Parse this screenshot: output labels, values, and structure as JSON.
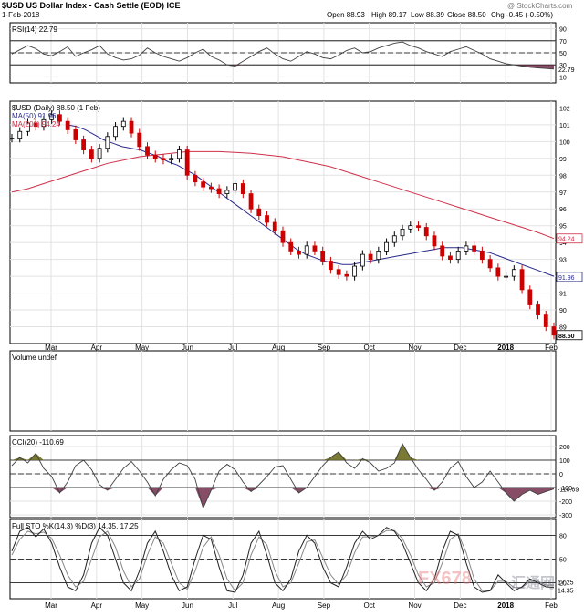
{
  "header": {
    "symbol_line": "$USD US Dollar Index - Cash Settle (EOD) ICE",
    "brand": "@ StockCharts.com",
    "date": "1-Feb-2018",
    "quote": {
      "open": "Open 88.93",
      "high": "High 89.17",
      "low": "Low 88.39",
      "close": "Close 88.50",
      "chg": "Chg -0.45 (-0.50%)"
    }
  },
  "colors": {
    "price_up": "#000000",
    "price_down": "#cc0000",
    "ma50": "#2a2a8a",
    "ma200": "#d0304a",
    "rsi": "#404040",
    "negative_fill": "#7a3a55",
    "positive_fill": "#6b6b1e",
    "frame": "#000000",
    "grid": "#e2e2e2"
  },
  "watermark": {
    "left": "FX678",
    "right": "汇通网"
  },
  "x_axis": {
    "months": [
      "Mar",
      "Apr",
      "May",
      "Jun",
      "Jul",
      "Aug",
      "Sep",
      "Oct",
      "Nov",
      "Dec",
      "2018",
      "Feb"
    ]
  },
  "chart_data": [
    {
      "type": "line",
      "title": "RSI(14) 22.79",
      "y_ticks": [
        90,
        70,
        50,
        30,
        10
      ],
      "reference_lines": [
        70,
        50,
        30
      ],
      "last_value": "22.79",
      "series": [
        {
          "name": "RSI(14)",
          "values": [
            48,
            55,
            62,
            57,
            48,
            45,
            52,
            60,
            44,
            50,
            55,
            62,
            48,
            42,
            38,
            40,
            46,
            58,
            50,
            44,
            40,
            36,
            42,
            50,
            56,
            44,
            38,
            30,
            28,
            36,
            44,
            52,
            58,
            48,
            40,
            36,
            44,
            52,
            48,
            42,
            40,
            46,
            54,
            58,
            50,
            52,
            58,
            62,
            66,
            68,
            62,
            58,
            52,
            48,
            44,
            52,
            56,
            60,
            54,
            48,
            40,
            36,
            32,
            30,
            28,
            26,
            25,
            24,
            23
          ]
        }
      ]
    },
    {
      "type": "line",
      "title": "$USD (Daily) 88.50 (1 Feb)",
      "legend": [
        "MA(50) 91.96",
        "MA(200) 94.24"
      ],
      "y_ticks": [
        102,
        101,
        100,
        99,
        98,
        97,
        96,
        95,
        94,
        93,
        92,
        91,
        90,
        89
      ],
      "ylim": [
        88,
        102.4
      ],
      "last_labels": {
        "ma200": "94.24",
        "ma50": "91.96",
        "price": "88.50"
      },
      "series": [
        {
          "name": "$USD",
          "values": [
            100.2,
            100.6,
            101.1,
            100.9,
            101.3,
            101.6,
            101.2,
            100.7,
            100.1,
            99.5,
            99.0,
            99.6,
            100.3,
            100.9,
            101.2,
            100.5,
            99.7,
            99.2,
            99.0,
            98.9,
            99.0,
            99.5,
            98.0,
            97.6,
            97.3,
            97.2,
            96.9,
            97.1,
            97.5,
            96.9,
            96.0,
            95.6,
            95.2,
            94.7,
            94.0,
            93.5,
            93.3,
            93.8,
            93.5,
            92.9,
            92.4,
            92.1,
            92.0,
            92.6,
            93.3,
            93.0,
            93.5,
            94.0,
            94.4,
            94.8,
            95.0,
            94.9,
            94.4,
            93.8,
            93.2,
            93.0,
            93.5,
            93.8,
            93.5,
            93.0,
            92.5,
            92.0,
            92.0,
            92.4,
            91.2,
            90.3,
            89.7,
            89.0,
            88.5
          ]
        },
        {
          "name": "MA(50)",
          "values": [
            null,
            null,
            null,
            null,
            null,
            null,
            101.0,
            100.9,
            100.7,
            100.4,
            100.1,
            99.9,
            99.7,
            99.6,
            99.5,
            99.3,
            99.1,
            98.8,
            98.6,
            98.3,
            98.0,
            97.6,
            97.2,
            96.8,
            96.4,
            96.0,
            95.6,
            95.2,
            94.8,
            94.4,
            94.0,
            93.6,
            93.3,
            93.1,
            92.9,
            92.8,
            92.7,
            92.7,
            92.8,
            92.9,
            93.0,
            93.1,
            93.2,
            93.3,
            93.4,
            93.5,
            93.6,
            93.7,
            93.7,
            93.7,
            93.6,
            93.5,
            93.4,
            93.2,
            93.0,
            92.8,
            92.6,
            92.4,
            92.2,
            92.0
          ]
        },
        {
          "name": "MA(200)",
          "values": [
            97.0,
            97.2,
            97.5,
            97.8,
            98.1,
            98.4,
            98.7,
            98.9,
            99.1,
            99.2,
            99.3,
            99.4,
            99.4,
            99.4,
            99.35,
            99.3,
            99.2,
            99.1,
            98.9,
            98.7,
            98.5,
            98.2,
            97.9,
            97.6,
            97.3,
            97.0,
            96.7,
            96.4,
            96.1,
            95.8,
            95.5,
            95.2,
            94.9,
            94.6,
            94.24
          ]
        }
      ]
    },
    {
      "type": "bar",
      "title": "Volume undef",
      "series": []
    },
    {
      "type": "line",
      "title": "CCI(20) -110.69",
      "y_ticks": [
        200,
        100,
        0,
        -100,
        -200,
        -300
      ],
      "reference_lines": [
        100,
        0,
        -100
      ],
      "last_value": "-110.69",
      "series": [
        {
          "name": "CCI(20)",
          "values": [
            60,
            120,
            80,
            150,
            40,
            -20,
            -140,
            -60,
            60,
            100,
            30,
            -80,
            -120,
            -40,
            40,
            90,
            20,
            -60,
            -160,
            -40,
            30,
            80,
            60,
            -40,
            -250,
            -120,
            20,
            70,
            30,
            -60,
            -130,
            -80,
            -20,
            50,
            60,
            -40,
            -140,
            -100,
            -20,
            60,
            120,
            160,
            80,
            40,
            110,
            80,
            20,
            40,
            80,
            220,
            120,
            30,
            -40,
            -120,
            -60,
            40,
            90,
            -20,
            -100,
            -60,
            20,
            -60,
            -140,
            -200,
            -150,
            -120,
            -150,
            -130,
            -110.69
          ]
        }
      ]
    },
    {
      "type": "line",
      "title": "Full STO %K(14,3) %D(3) 14.35, 17.25",
      "y_ticks": [
        80,
        50,
        20
      ],
      "reference_lines": [
        80,
        50,
        20
      ],
      "last_labels": {
        "d": "17.25",
        "k": "14.35"
      },
      "series": [
        {
          "name": "%K",
          "values": [
            60,
            85,
            90,
            78,
            88,
            70,
            40,
            15,
            10,
            30,
            70,
            90,
            80,
            50,
            20,
            10,
            35,
            70,
            85,
            60,
            30,
            10,
            15,
            50,
            80,
            75,
            40,
            10,
            8,
            30,
            70,
            85,
            55,
            20,
            10,
            25,
            60,
            80,
            70,
            40,
            20,
            15,
            40,
            70,
            85,
            75,
            80,
            90,
            85,
            70,
            45,
            20,
            10,
            25,
            60,
            85,
            80,
            45,
            15,
            8,
            10,
            30,
            20,
            10,
            15,
            25,
            20,
            15,
            14.35
          ]
        },
        {
          "name": "%D",
          "values": [
            55,
            75,
            85,
            82,
            84,
            76,
            55,
            30,
            15,
            22,
            50,
            78,
            85,
            65,
            35,
            15,
            25,
            55,
            78,
            70,
            45,
            20,
            12,
            35,
            65,
            78,
            55,
            25,
            10,
            20,
            55,
            78,
            68,
            35,
            15,
            20,
            45,
            72,
            74,
            52,
            30,
            18,
            30,
            58,
            78,
            78,
            80,
            86,
            86,
            76,
            55,
            30,
            15,
            20,
            45,
            75,
            82,
            58,
            25,
            10,
            10,
            22,
            22,
            14,
            14,
            22,
            22,
            17,
            17.25
          ]
        }
      ]
    }
  ]
}
